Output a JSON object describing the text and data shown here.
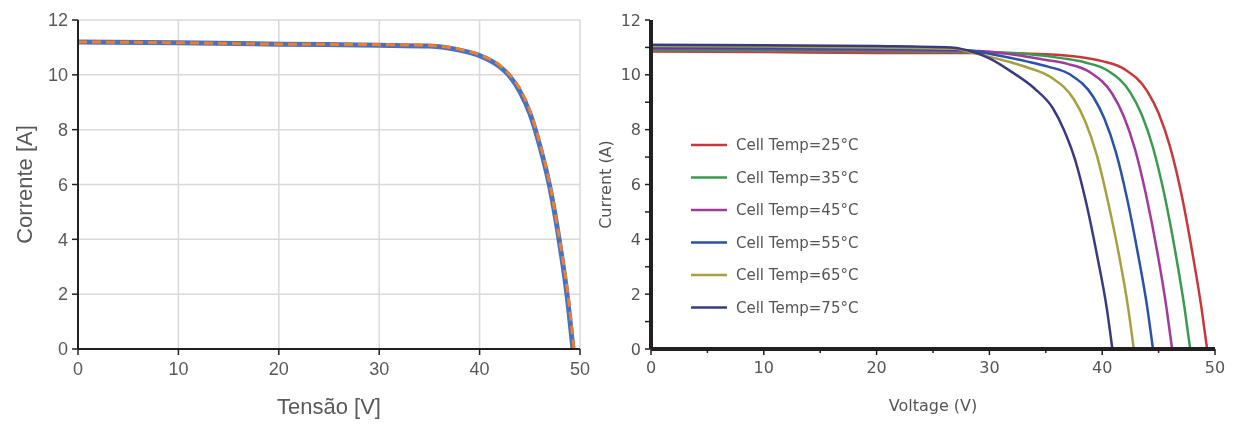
{
  "chart_data": [
    {
      "type": "line",
      "xlabel": "Tensão [V]",
      "ylabel": "Corrente [A]",
      "xlim": [
        0,
        50
      ],
      "ylim": [
        0,
        12
      ],
      "xticks": [
        0,
        10,
        20,
        30,
        40,
        50
      ],
      "yticks": [
        0,
        2,
        4,
        6,
        8,
        10,
        12
      ],
      "grid": true,
      "legend": false,
      "series": [
        {
          "color": "#4472c4",
          "line_style": "solid",
          "x": [
            0,
            10,
            20,
            30,
            35,
            38,
            40,
            42,
            43,
            44,
            45,
            46,
            47,
            48,
            48.7,
            49.3
          ],
          "values": [
            11.2,
            11.17,
            11.12,
            11.08,
            11.05,
            10.9,
            10.7,
            10.3,
            9.95,
            9.4,
            8.6,
            7.4,
            5.9,
            3.8,
            2.0,
            0
          ]
        },
        {
          "color": "#ed7d31",
          "line_style": "dashed",
          "x": [
            0,
            10,
            20,
            30,
            35,
            38,
            40,
            42,
            43,
            44,
            45,
            46,
            47,
            48,
            48.8,
            49.4
          ],
          "values": [
            11.2,
            11.17,
            11.12,
            11.1,
            11.07,
            10.93,
            10.73,
            10.35,
            10.0,
            9.5,
            8.7,
            7.5,
            6.0,
            3.9,
            2.0,
            0
          ]
        }
      ]
    },
    {
      "type": "line",
      "xlabel": "Voltage (V)",
      "ylabel": "Current (A)",
      "xlim": [
        0,
        50
      ],
      "ylim": [
        0,
        12
      ],
      "xticks": [
        0,
        {
          "value": 5,
          "label": null
        },
        10,
        {
          "value": 15,
          "label": null
        },
        20,
        {
          "value": 25,
          "label": null
        },
        30,
        {
          "value": 35,
          "label": null
        },
        40,
        {
          "value": 45,
          "label": null
        },
        50
      ],
      "yticks": [
        0,
        {
          "value": 1,
          "label": null
        },
        2,
        {
          "value": 3,
          "label": null
        },
        4,
        {
          "value": 5,
          "label": null
        },
        6,
        {
          "value": 7,
          "label": null
        },
        8,
        {
          "value": 9,
          "label": null
        },
        10,
        {
          "value": 11,
          "label": null
        },
        12
      ],
      "legend": "left",
      "series": [
        {
          "name": "Cell Temp=25°C",
          "color": "#c8383a",
          "x": [
            0,
            10,
            20,
            30,
            35,
            38,
            40,
            42,
            44,
            45,
            46,
            47,
            48,
            48.8,
            49.3
          ],
          "values": [
            10.85,
            10.83,
            10.8,
            10.8,
            10.75,
            10.65,
            10.5,
            10.2,
            9.4,
            8.6,
            7.4,
            5.7,
            3.5,
            1.5,
            0
          ]
        },
        {
          "name": "Cell Temp=35°C",
          "color": "#3a9a50",
          "x": [
            0,
            10,
            20,
            30,
            33.5,
            36.5,
            38.5,
            40.5,
            42.5,
            43.5,
            44.5,
            45.5,
            46.5,
            47.3,
            47.8
          ],
          "values": [
            10.9,
            10.88,
            10.85,
            10.83,
            10.75,
            10.6,
            10.45,
            10.15,
            9.35,
            8.55,
            7.35,
            5.65,
            3.5,
            1.5,
            0
          ]
        },
        {
          "name": "Cell Temp=45°C",
          "color": "#a23a9e",
          "x": [
            0,
            10,
            20,
            29,
            31.9,
            34.9,
            36.9,
            38.9,
            40.9,
            41.9,
            42.9,
            43.9,
            44.9,
            45.7,
            46.2
          ],
          "values": [
            10.95,
            10.93,
            10.9,
            10.87,
            10.75,
            10.55,
            10.4,
            10.1,
            9.3,
            8.5,
            7.3,
            5.6,
            3.5,
            1.5,
            0
          ]
        },
        {
          "name": "Cell Temp=55°C",
          "color": "#2a52a8",
          "x": [
            0,
            10,
            20,
            28,
            30.2,
            33.2,
            35.2,
            37.2,
            39.2,
            40.2,
            41.2,
            42.2,
            43.2,
            44,
            44.5
          ],
          "values": [
            11.0,
            10.98,
            10.95,
            10.9,
            10.75,
            10.5,
            10.3,
            10.0,
            9.2,
            8.4,
            7.2,
            5.5,
            3.4,
            1.5,
            0
          ]
        },
        {
          "name": "Cell Temp=65°C",
          "color": "#a8a040",
          "x": [
            0,
            10,
            20,
            27,
            28.5,
            31.5,
            33.5,
            35.5,
            37.5,
            38.5,
            39.5,
            40.5,
            41.5,
            42.3,
            42.8
          ],
          "values": [
            11.05,
            11.03,
            11.0,
            10.95,
            10.8,
            10.5,
            10.25,
            9.9,
            9.1,
            8.3,
            7.1,
            5.4,
            3.4,
            1.5,
            0
          ]
        },
        {
          "name": "Cell Temp=75°C",
          "color": "#3a3a80",
          "x": [
            0,
            10,
            20,
            26.6,
            28,
            30,
            32,
            34,
            35.6,
            36.6,
            37.6,
            38.6,
            39.6,
            40.4,
            40.9
          ],
          "values": [
            11.1,
            11.08,
            11.05,
            11.0,
            10.9,
            10.6,
            10.1,
            9.5,
            8.8,
            8.0,
            6.9,
            5.3,
            3.3,
            1.5,
            0
          ]
        }
      ]
    }
  ]
}
